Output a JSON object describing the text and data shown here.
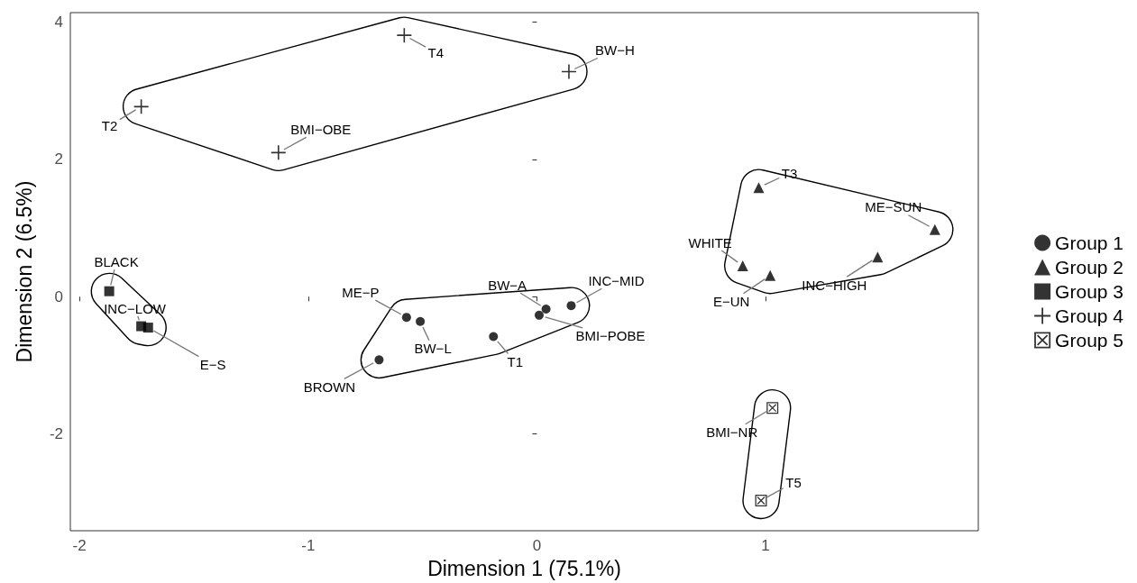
{
  "chart_data": {
    "type": "scatter",
    "xlabel": "Dimension 1 (75.1%)",
    "ylabel": "Dimension 2 (6.5%)",
    "xlim": [
      -2.04,
      1.93
    ],
    "ylim": [
      -3.41,
      4.14
    ],
    "xticks": [
      -2,
      -1,
      0,
      1
    ],
    "yticks": [
      -2,
      0,
      2,
      4
    ],
    "grid": false,
    "legend": "right",
    "series": [
      {
        "name": "Group 1",
        "color": "#000000",
        "marker": "circle",
        "x": [
          -0.69,
          -0.57,
          -0.51,
          -0.19,
          0.01,
          0.04,
          0.15
        ],
        "values": [
          -0.92,
          -0.3,
          -0.36,
          -0.58,
          -0.27,
          -0.18,
          -0.13
        ]
      },
      {
        "name": "Group 2",
        "color": "#000000",
        "marker": "triangle",
        "x": [
          0.97,
          1.74,
          1.49,
          0.9,
          1.02
        ],
        "values": [
          1.59,
          0.98,
          0.58,
          0.45,
          0.31
        ]
      },
      {
        "name": "Group 3",
        "color": "#000000",
        "marker": "square",
        "x": [
          -1.87,
          -1.73,
          -1.7
        ],
        "values": [
          0.08,
          -0.43,
          -0.45
        ]
      },
      {
        "name": "Group 4",
        "color": "#000000",
        "marker": "cross",
        "x": [
          -0.58,
          0.14,
          -1.73,
          -1.13
        ],
        "values": [
          3.81,
          3.28,
          2.77,
          2.1
        ]
      },
      {
        "name": "Group 5",
        "color": "#000000",
        "marker": "square-x",
        "x": [
          1.03,
          0.98
        ],
        "values": [
          -1.62,
          -2.97
        ]
      }
    ],
    "annotations": [
      {
        "text": "BROWN",
        "x": -0.69,
        "y": -0.92
      },
      {
        "text": "ME−P",
        "x": -0.57,
        "y": -0.3
      },
      {
        "text": "BW−L",
        "x": -0.51,
        "y": -0.36
      },
      {
        "text": "T1",
        "x": -0.19,
        "y": -0.58
      },
      {
        "text": "BMI−POBE",
        "x": 0.01,
        "y": -0.27
      },
      {
        "text": "BW−A",
        "x": 0.04,
        "y": -0.18
      },
      {
        "text": "INC−MID",
        "x": 0.15,
        "y": -0.13
      },
      {
        "text": "T3",
        "x": 0.97,
        "y": 1.59
      },
      {
        "text": "ME−SUN",
        "x": 1.74,
        "y": 0.98
      },
      {
        "text": "INC−HIGH",
        "x": 1.49,
        "y": 0.58
      },
      {
        "text": "WHITE",
        "x": 0.9,
        "y": 0.45
      },
      {
        "text": "E−UN",
        "x": 1.02,
        "y": 0.31
      },
      {
        "text": "BLACK",
        "x": -1.87,
        "y": 0.08
      },
      {
        "text": "INC−LOW",
        "x": -1.73,
        "y": -0.43
      },
      {
        "text": "E−S",
        "x": -1.7,
        "y": -0.45
      },
      {
        "text": "T4",
        "x": -0.58,
        "y": 3.81
      },
      {
        "text": "BW−H",
        "x": 0.14,
        "y": 3.28
      },
      {
        "text": "T2",
        "x": -1.73,
        "y": 2.77
      },
      {
        "text": "BMI−OBE",
        "x": -1.13,
        "y": 2.1
      },
      {
        "text": "BMI−NR",
        "x": 1.03,
        "y": -1.62
      },
      {
        "text": "T5",
        "x": 0.98,
        "y": -2.97
      }
    ]
  }
}
